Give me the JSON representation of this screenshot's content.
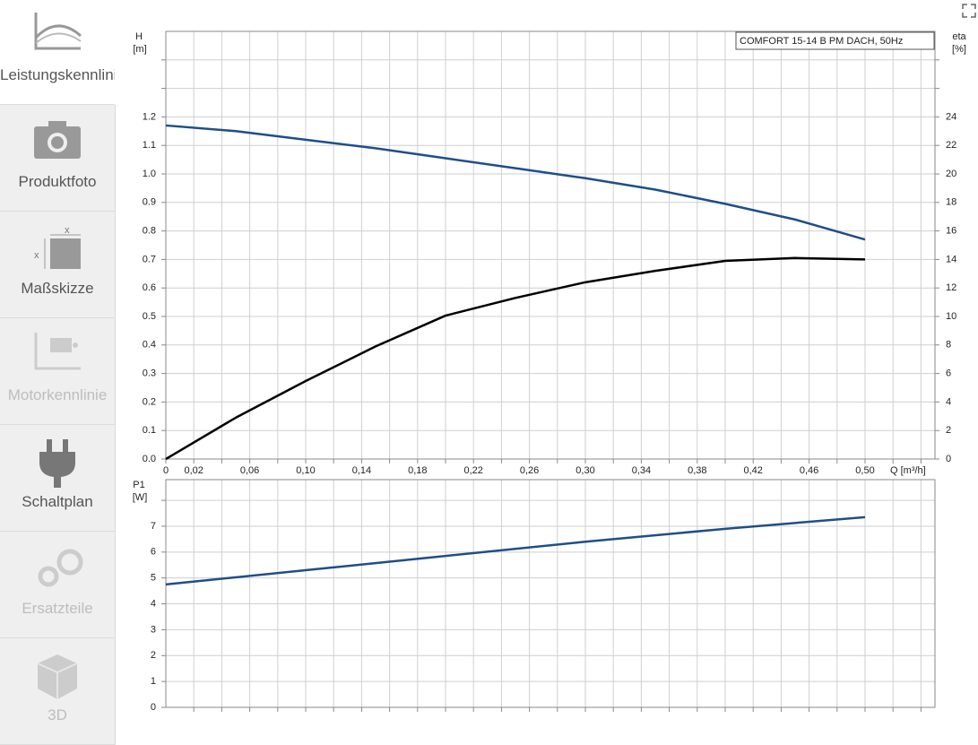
{
  "sidebar": {
    "items": [
      {
        "label": "Leistungskennlinie",
        "active": true,
        "disabled": false
      },
      {
        "label": "Produktfoto",
        "active": false,
        "disabled": false
      },
      {
        "label": "Maßskizze",
        "active": false,
        "disabled": false
      },
      {
        "label": "Motorkennlinie",
        "active": false,
        "disabled": true
      },
      {
        "label": "Schaltplan",
        "active": false,
        "disabled": false
      },
      {
        "label": "Ersatzteile",
        "active": false,
        "disabled": true
      },
      {
        "label": "3D",
        "active": false,
        "disabled": true
      }
    ]
  },
  "chart_data": [
    {
      "type": "line",
      "title": "COMFORT 15-14 B PM DACH, 50Hz",
      "ylabel": "H",
      "yunit": "[m]",
      "y2label": "eta",
      "y2unit": "[%]",
      "xlabel": "Q [m³/h]",
      "x": [
        0,
        0.05,
        0.1,
        0.15,
        0.2,
        0.25,
        0.3,
        0.35,
        0.4,
        0.45,
        0.5
      ],
      "series": [
        {
          "name": "H",
          "color": "#1f4e89",
          "values": [
            1.17,
            1.15,
            1.12,
            1.09,
            1.055,
            1.02,
            0.985,
            0.945,
            0.895,
            0.84,
            0.77
          ]
        },
        {
          "name": "eta",
          "color": "#000000",
          "axis": "y2",
          "values": [
            0,
            2.9,
            5.47,
            7.9,
            10.06,
            11.3,
            12.4,
            13.2,
            13.9,
            14.1,
            14.0
          ]
        }
      ],
      "xlim": [
        0,
        0.55
      ],
      "ylim": [
        0,
        1.5
      ],
      "y2lim": [
        0,
        30
      ],
      "grid": true,
      "xticks": [
        0,
        {
          "value": 0.02,
          "label": "0,02"
        },
        {
          "value": 0.04,
          "label": null
        },
        {
          "value": 0.06,
          "label": "0,06"
        },
        {
          "value": 0.08,
          "label": null
        },
        {
          "value": 0.1,
          "label": "0,10"
        },
        {
          "value": 0.12,
          "label": null
        },
        {
          "value": 0.14,
          "label": "0,14"
        },
        {
          "value": 0.16,
          "label": null
        },
        {
          "value": 0.18,
          "label": "0,18"
        },
        {
          "value": 0.2,
          "label": null
        },
        {
          "value": 0.22,
          "label": "0,22"
        },
        {
          "value": 0.24,
          "label": null
        },
        {
          "value": 0.26,
          "label": "0,26"
        },
        {
          "value": 0.28,
          "label": null
        },
        {
          "value": 0.3,
          "label": "0,30"
        },
        {
          "value": 0.32,
          "label": null
        },
        {
          "value": 0.34,
          "label": "0,34"
        },
        {
          "value": 0.36,
          "label": null
        },
        {
          "value": 0.38,
          "label": "0,38"
        },
        {
          "value": 0.4,
          "label": null
        },
        {
          "value": 0.42,
          "label": "0,42"
        },
        {
          "value": 0.44,
          "label": null
        },
        {
          "value": 0.46,
          "label": "0,46"
        },
        {
          "value": 0.48,
          "label": null
        },
        {
          "value": 0.5,
          "label": "0,50"
        },
        {
          "value": 0.52,
          "label": null
        },
        {
          "value": 0.54,
          "label": null
        }
      ],
      "yticks": [
        {
          "value": 0,
          "label": "0.0"
        },
        0.1,
        0.2,
        0.3,
        0.4,
        0.5,
        0.6,
        0.7,
        0.8,
        0.9,
        {
          "value": 1,
          "label": "1.0"
        },
        1.1,
        1.2,
        {
          "value": 1.3,
          "label": null
        },
        {
          "value": 1.4,
          "label": null
        }
      ],
      "y2ticks": [
        0,
        2,
        4,
        6,
        8,
        10,
        12,
        14,
        16,
        18,
        20,
        22,
        24,
        {
          "value": 26,
          "label": null
        },
        {
          "value": 28,
          "label": null
        }
      ]
    },
    {
      "type": "line",
      "ylabel": "P1",
      "yunit": "[W]",
      "x": [
        0,
        0.1,
        0.2,
        0.3,
        0.4,
        0.5
      ],
      "series": [
        {
          "name": "P1",
          "color": "#1f4e89",
          "values": [
            4.75,
            5.3,
            5.85,
            6.4,
            6.9,
            7.35
          ]
        }
      ],
      "xlim": [
        0,
        0.55
      ],
      "ylim": [
        0,
        8.8
      ],
      "grid": true,
      "xticks": [
        {
          "value": 0.02,
          "label": null
        },
        {
          "value": 0.04,
          "label": null
        },
        {
          "value": 0.06,
          "label": null
        },
        {
          "value": 0.08,
          "label": null
        },
        {
          "value": 0.1,
          "label": null
        },
        {
          "value": 0.12,
          "label": null
        },
        {
          "value": 0.14,
          "label": null
        },
        {
          "value": 0.16,
          "label": null
        },
        {
          "value": 0.18,
          "label": null
        },
        {
          "value": 0.2,
          "label": null
        },
        {
          "value": 0.22,
          "label": null
        },
        {
          "value": 0.24,
          "label": null
        },
        {
          "value": 0.26,
          "label": null
        },
        {
          "value": 0.28,
          "label": null
        },
        {
          "value": 0.3,
          "label": null
        },
        {
          "value": 0.32,
          "label": null
        },
        {
          "value": 0.34,
          "label": null
        },
        {
          "value": 0.36,
          "label": null
        },
        {
          "value": 0.38,
          "label": null
        },
        {
          "value": 0.4,
          "label": null
        },
        {
          "value": 0.42,
          "label": null
        },
        {
          "value": 0.44,
          "label": null
        },
        {
          "value": 0.46,
          "label": null
        },
        {
          "value": 0.48,
          "label": null
        },
        {
          "value": 0.5,
          "label": null
        },
        {
          "value": 0.52,
          "label": null
        },
        {
          "value": 0.54,
          "label": null
        }
      ],
      "yticks": [
        0,
        1,
        2,
        3,
        4,
        5,
        6,
        7,
        {
          "value": 8,
          "label": null
        }
      ]
    }
  ]
}
